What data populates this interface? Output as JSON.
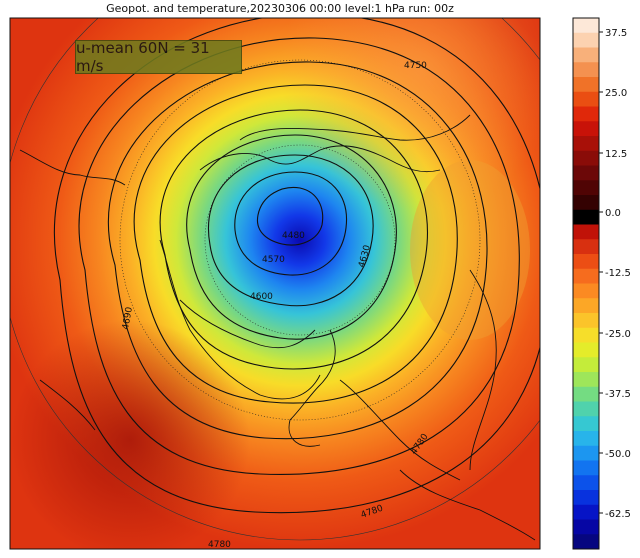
{
  "title": "Geopot. and temperature,20230306 00:00 level:1 hPa run: 00z",
  "annotation": "u-mean 60N = 31 m/s",
  "contours": [
    "4480",
    "4570",
    "4600",
    "4630",
    "4690",
    "4750",
    "4780",
    "4780",
    "4780"
  ],
  "colorbar": {
    "ticks": [
      "37.5",
      "25.0",
      "12.5",
      "0.0",
      "-12.5",
      "-25.0",
      "-37.5",
      "-50.0",
      "-62.5"
    ],
    "colors": [
      "#fde8d8",
      "#fcd2b0",
      "#f8b07a",
      "#f49150",
      "#f07228",
      "#ea4e12",
      "#e0280a",
      "#c81208",
      "#a81008",
      "#8a0c08",
      "#6c0808",
      "#500404",
      "#340202",
      "#000000",
      "#c01208",
      "#d83010",
      "#ec4e14",
      "#f66c1e",
      "#fb8a22",
      "#fca726",
      "#fbc42a",
      "#f6de2a",
      "#e4ec2a",
      "#c4ec3a",
      "#9ee65a",
      "#74dc82",
      "#50d2ac",
      "#36c8d2",
      "#28b4ea",
      "#1c96f0",
      "#1274f0",
      "#0c52ea",
      "#0832de",
      "#0614c6",
      "#0606a4",
      "#060680"
    ]
  }
}
